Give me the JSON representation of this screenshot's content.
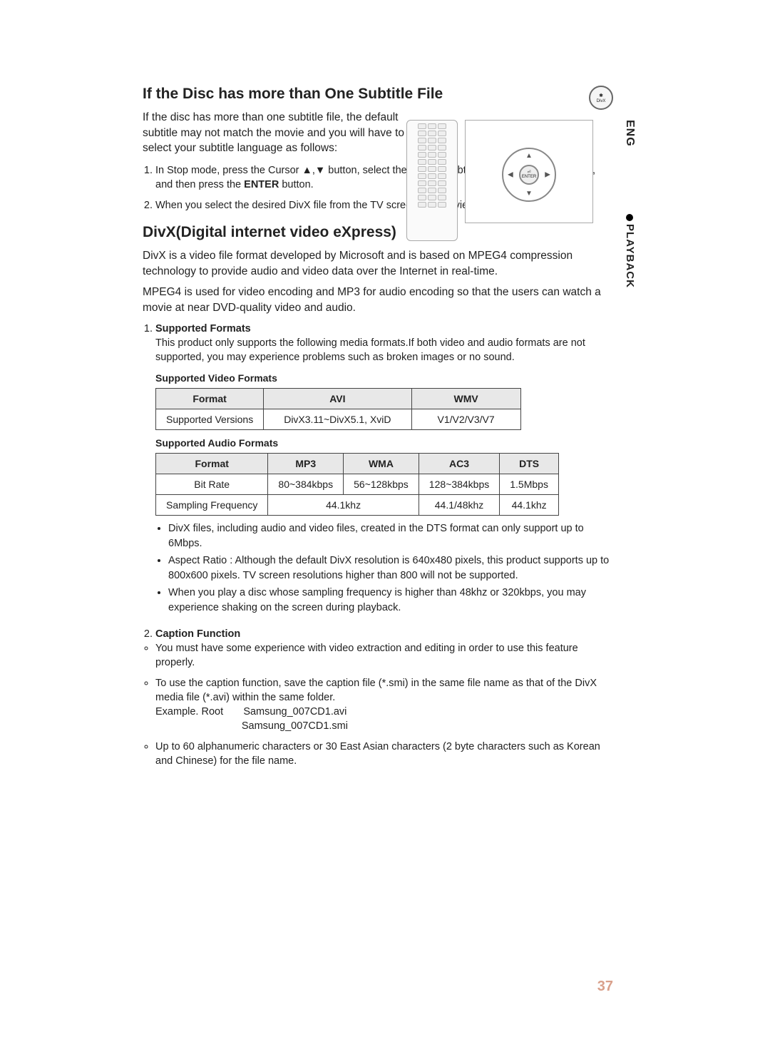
{
  "side": {
    "lang": "ENG",
    "section": "PLAYBACK"
  },
  "divx_badge": {
    "symbol": "✱",
    "label": "DivX"
  },
  "subtitle_section": {
    "heading": "If the Disc has more than One Subtitle File",
    "intro": "If the disc has more than one subtitle file, the default subtitle may not match the movie and you will have to select your subtitle language as follows:",
    "step1_a": "In Stop mode, press the Cursor ▲,▼ button, select the desired subtitle (",
    "step1_b": ") from the TV screen, and then press the ",
    "step1_enter": "ENTER",
    "step1_c": " button.",
    "step2": "When you select the desired DivX file from the TV screen, the movie will be played normally."
  },
  "remote": {
    "enter_top": "⏎",
    "enter_label": "ENTER"
  },
  "divx_section": {
    "heading": "DivX(Digital internet video eXpress)",
    "para1": "DivX is a video file format developed by Microsoft and is based on MPEG4 compression technology to provide audio and video data over the Internet in real-time.",
    "para2": "MPEG4 is used for video encoding and MP3 for audio encoding so that the users can watch a movie at near DVD-quality video and audio.",
    "supported_heading": "Supported Formats",
    "supported_intro": "This product only supports the following media formats.If both video and audio formats are not supported, you may experience problems such as broken images or no sound.",
    "video_heading": "Supported Video Formats",
    "audio_heading": "Supported Audio Formats"
  },
  "video_table": {
    "h_format": "Format",
    "h_avi": "AVI",
    "h_wmv": "WMV",
    "r1_label": "Supported Versions",
    "r1_avi": "DivX3.11~DivX5.1, XviD",
    "r1_wmv": "V1/V2/V3/V7"
  },
  "audio_table": {
    "h_format": "Format",
    "h_mp3": "MP3",
    "h_wma": "WMA",
    "h_ac3": "AC3",
    "h_dts": "DTS",
    "r1_label": "Bit Rate",
    "r1_mp3": "80~384kbps",
    "r1_wma": "56~128kbps",
    "r1_ac3": "128~384kbps",
    "r1_dts": "1.5Mbps",
    "r2_label": "Sampling Frequency",
    "r2_merged": "44.1khz",
    "r2_ac3": "44.1/48khz",
    "r2_dts": "44.1khz"
  },
  "notes": {
    "n1": "DivX files, including audio and video files, created in the DTS format can only support up to 6Mbps.",
    "n2": "Aspect Ratio : Although the default DivX resolution is 640x480 pixels, this product supports up to 800x600 pixels. TV screen resolutions higher than 800 will not be supported.",
    "n3": "When you play a disc whose sampling frequency is higher than 48khz or 320kbps, you may experience shaking on the screen during playback."
  },
  "caption": {
    "heading": "Caption Function",
    "b1": "You must have some experience with video extraction and editing in order to use this feature properly.",
    "b2": "To use the caption function, save the caption file (*.smi) in the same file name as that of the DivX media file (*.avi) within the same folder.",
    "ex_label": "Example.   Root",
    "ex_file1": "Samsung_007CD1.avi",
    "ex_file2": "Samsung_007CD1.smi",
    "b3": "Up to 60 alphanumeric characters or 30 East Asian characters (2 byte characters such as Korean and Chinese) for the file name."
  },
  "pagenum": "37",
  "colors": {
    "pagenum": "#d9a08b"
  }
}
